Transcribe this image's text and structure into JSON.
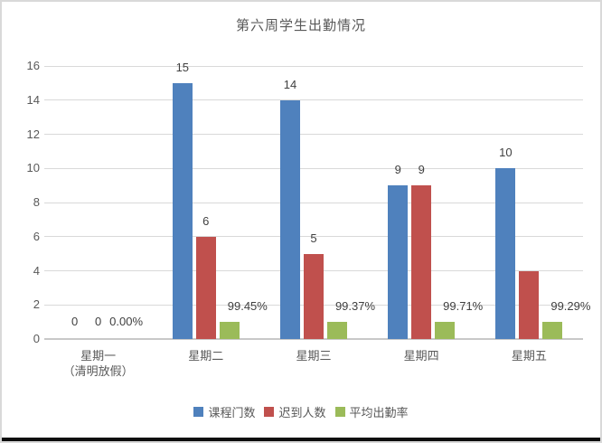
{
  "window": {
    "background": "#ffffff",
    "border_color": "#d9d9d9",
    "bottom_edge_color": "#0d0d0d"
  },
  "chart_data": {
    "type": "bar",
    "title": "第六周学生出勤情况",
    "title_color": "#595959",
    "categories": [
      [
        "星期一",
        "（清明放假）"
      ],
      [
        "星期二"
      ],
      [
        "星期三"
      ],
      [
        "星期四"
      ],
      [
        "星期五"
      ]
    ],
    "series": [
      {
        "name": "课程门数",
        "color": "#4F81BD",
        "values": [
          0,
          15,
          14,
          9,
          10
        ],
        "labels": [
          "0",
          "15",
          "14",
          "9",
          "10"
        ]
      },
      {
        "name": "迟到人数",
        "color": "#C0504D",
        "values": [
          0,
          6,
          5,
          9,
          4
        ],
        "labels": [
          "0",
          "6",
          "5",
          "9",
          ""
        ]
      },
      {
        "name": "平均出勤率",
        "color": "#9BBB59",
        "values": [
          0,
          0.9945,
          0.9937,
          0.9971,
          0.9929
        ],
        "labels": [
          "0.00%",
          "99.45%",
          "99.37%",
          "99.71%",
          "99.29%"
        ]
      }
    ],
    "ylim": [
      0,
      16
    ],
    "yticks": [
      0,
      2,
      4,
      6,
      8,
      10,
      12,
      14,
      16
    ],
    "grid": true,
    "legend_position": "bottom",
    "gridline_color": "#d9d9d9",
    "axis_line_color": "#c8c8c8",
    "tick_label_color": "#595959",
    "x_label_color": "#595959",
    "data_label_color": "#404040",
    "legend_label_color": "#595959"
  }
}
